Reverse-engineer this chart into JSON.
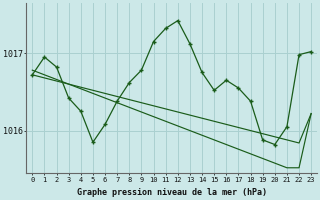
{
  "title": "Graphe pression niveau de la mer (hPa)",
  "bg_color": "#cce8e8",
  "grid_color": "#aad0d0",
  "line_color": "#1a5c1a",
  "x_labels": [
    "0",
    "1",
    "2",
    "3",
    "4",
    "5",
    "6",
    "7",
    "8",
    "9",
    "10",
    "11",
    "12",
    "13",
    "14",
    "15",
    "16",
    "17",
    "18",
    "19",
    "20",
    "21",
    "22",
    "23"
  ],
  "series1": [
    1016.72,
    1016.95,
    1016.82,
    1016.42,
    1016.25,
    1015.85,
    1016.08,
    1016.38,
    1016.62,
    1016.78,
    1017.15,
    1017.32,
    1017.42,
    1017.12,
    1016.75,
    1016.52,
    1016.65,
    1016.55,
    1016.38,
    1015.88,
    1015.82,
    1016.05,
    1016.98,
    1017.02
  ],
  "trend1": [
    1016.78,
    1016.72,
    1016.66,
    1016.6,
    1016.54,
    1016.48,
    1016.42,
    1016.36,
    1016.3,
    1016.24,
    1016.18,
    1016.12,
    1016.06,
    1016.0,
    1015.94,
    1015.88,
    1015.82,
    1015.76,
    1015.7,
    1015.64,
    1015.58,
    1015.52,
    1015.52,
    1016.22
  ],
  "trend2": [
    1016.72,
    1016.68,
    1016.64,
    1016.6,
    1016.56,
    1016.52,
    1016.48,
    1016.44,
    1016.4,
    1016.36,
    1016.32,
    1016.28,
    1016.24,
    1016.2,
    1016.16,
    1016.12,
    1016.08,
    1016.04,
    1016.0,
    1015.96,
    1015.92,
    1015.88,
    1015.84,
    1016.22
  ],
  "ylim": [
    1015.45,
    1017.65
  ],
  "yticks": [
    1016,
    1017
  ]
}
